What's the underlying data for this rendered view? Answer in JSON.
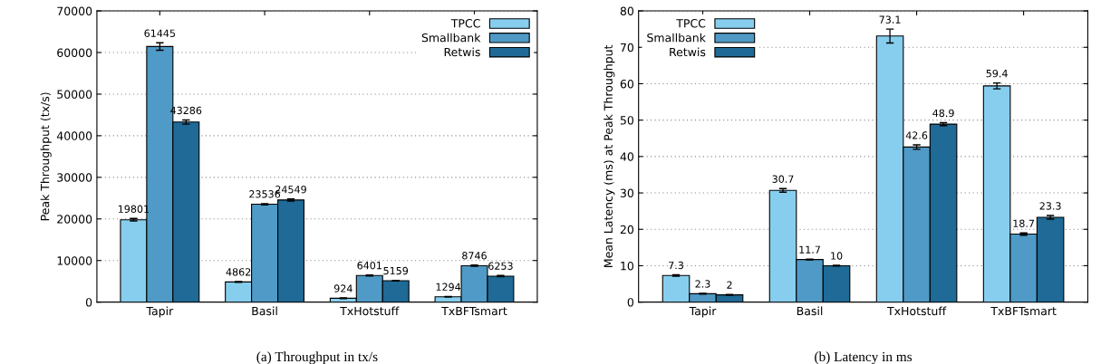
{
  "chart_data": [
    {
      "type": "bar",
      "ylabel": "Peak Throughput (tx/s)",
      "categories": [
        "Tapir",
        "Basil",
        "TxHotstuff",
        "TxBFTsmart"
      ],
      "series": [
        {
          "name": "TPCC",
          "color": "#87ceee",
          "values": [
            19801,
            4862,
            924,
            1294
          ],
          "errors": [
            300,
            100,
            80,
            80
          ]
        },
        {
          "name": "Smallbank",
          "color": "#4f9ac6",
          "values": [
            61445,
            23536,
            6401,
            8746
          ],
          "errors": [
            900,
            150,
            120,
            150
          ]
        },
        {
          "name": "Retwis",
          "color": "#1f6a96",
          "values": [
            43286,
            24549,
            5159,
            6253
          ],
          "errors": [
            500,
            250,
            80,
            150
          ]
        }
      ],
      "ylim": [
        0,
        70000
      ],
      "yticks": [
        0,
        10000,
        20000,
        30000,
        40000,
        50000,
        60000,
        70000
      ],
      "grid": "y",
      "legend": "top right",
      "data_labels": true,
      "annotations": [
        "(a) Throughput in tx/s"
      ]
    },
    {
      "type": "bar",
      "ylabel": "Mean Latency (ms) at Peak Throughput",
      "categories": [
        "Tapir",
        "Basil",
        "TxHotstuff",
        "TxBFTsmart"
      ],
      "series": [
        {
          "name": "TPCC",
          "color": "#87ceee",
          "values": [
            7.3,
            30.7,
            73.1,
            59.4
          ],
          "errors": [
            0.2,
            0.5,
            1.9,
            0.8
          ]
        },
        {
          "name": "Smallbank",
          "color": "#4f9ac6",
          "values": [
            2.3,
            11.7,
            42.6,
            18.7
          ],
          "errors": [
            0.1,
            0.1,
            0.6,
            0.3
          ]
        },
        {
          "name": "Retwis",
          "color": "#1f6a96",
          "values": [
            2,
            10,
            48.9,
            23.3
          ],
          "errors": [
            0.1,
            0.1,
            0.4,
            0.5
          ]
        }
      ],
      "ylim": [
        0,
        80
      ],
      "yticks": [
        0,
        10,
        20,
        30,
        40,
        50,
        60,
        70,
        80
      ],
      "grid": "y",
      "legend": "top left",
      "data_labels": true,
      "annotations": [
        "(b) Latency in ms"
      ]
    }
  ]
}
